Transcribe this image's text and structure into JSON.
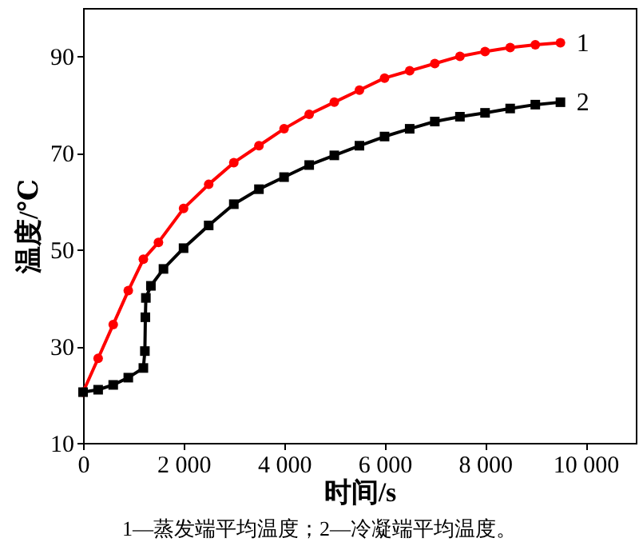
{
  "chart_data": {
    "type": "line",
    "xlabel": "时间/s",
    "ylabel": "温度/℃",
    "annotations": [
      "1—蒸发端平均温度；2—冷凝端平均温度。"
    ],
    "xlim": [
      0,
      11000
    ],
    "xticks": [
      0,
      {
        "value": 2000,
        "label": "2 000"
      },
      {
        "value": 4000,
        "label": "4 000"
      },
      {
        "value": 6000,
        "label": "6 000"
      },
      {
        "value": 8000,
        "label": "8 000"
      },
      {
        "value": 10000,
        "label": "10 000"
      }
    ],
    "ylim": [
      10,
      100
    ],
    "yticks": [
      10,
      30,
      50,
      70,
      90
    ],
    "grid": false,
    "series": [
      {
        "name": "1",
        "color": "#ff0000",
        "marker": "circle",
        "x": [
          0,
          300,
          600,
          900,
          1200,
          1500,
          2000,
          2500,
          3000,
          3500,
          4000,
          4500,
          5000,
          5500,
          6000,
          6500,
          7000,
          7500,
          8000,
          8500,
          9000,
          9500
        ],
        "values": [
          20.5,
          27.5,
          34.5,
          41.5,
          48,
          51.5,
          58.5,
          63.5,
          68,
          71.5,
          75,
          78,
          80.5,
          83,
          85.5,
          87,
          88.5,
          90,
          91,
          91.8,
          92.4,
          92.8
        ]
      },
      {
        "name": "2",
        "color": "#000000",
        "marker": "square",
        "x": [
          0,
          300,
          600,
          900,
          1200,
          1230,
          1240,
          1250,
          1350,
          1600,
          2000,
          2500,
          3000,
          3500,
          4000,
          4500,
          5000,
          5500,
          6000,
          6500,
          7000,
          7500,
          8000,
          8500,
          9000,
          9500
        ],
        "values": [
          20.5,
          21,
          22,
          23.5,
          25.5,
          29,
          36,
          40,
          42.5,
          46,
          50.3,
          55,
          59.4,
          62.5,
          65,
          67.5,
          69.5,
          71.5,
          73.4,
          75,
          76.5,
          77.5,
          78.3,
          79.2,
          80,
          80.5
        ]
      }
    ]
  }
}
